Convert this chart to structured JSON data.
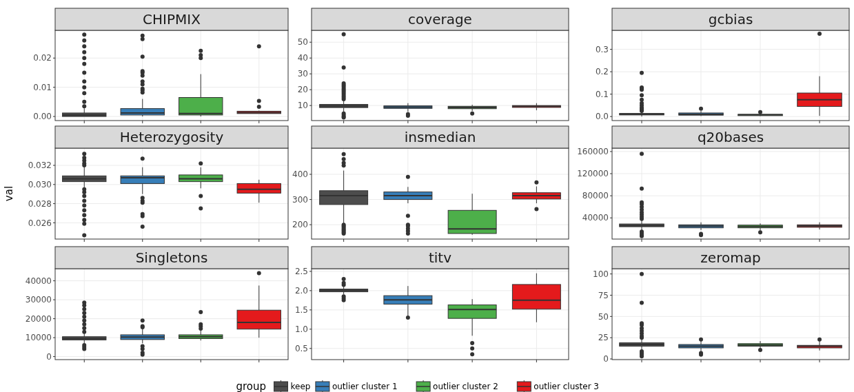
{
  "chart_data": [
    {
      "type": "box",
      "title": "CHIPMIX",
      "categories": [
        null,
        null,
        null,
        null
      ],
      "ylim": [
        -0.0014,
        0.0295
      ],
      "yticks": [
        {
          "value": 0,
          "label": "0.00"
        },
        0.01,
        0.02
      ],
      "grid": true,
      "series": [
        {
          "color": "#4d4d4d",
          "boxes": [
            {
              "low": 0,
              "q1": 0,
              "median": 0.0005,
              "q3": 0.0012,
              "high": 0.0028,
              "outliers": [
                0.0035,
                0.005,
                0.008,
                0.01,
                0.012,
                0.015,
                0.018,
                0.02,
                0.022,
                0.024,
                0.026,
                0.028
              ]
            },
            null,
            null,
            null
          ]
        },
        {
          "color": "#377eb8",
          "boxes": [
            null,
            {
              "low": 0,
              "q1": 0.0005,
              "median": 0.0012,
              "q3": 0.0027,
              "high": 0.006,
              "outliers": [
                0.0082,
                0.009,
                0.0095,
                0.011,
                0.012,
                0.014,
                0.015,
                0.0155,
                0.0205,
                0.0265,
                0.0277
              ]
            },
            null,
            null
          ]
        },
        {
          "color": "#4daf4a",
          "boxes": [
            null,
            null,
            {
              "low": 0,
              "q1": 0.0005,
              "median": 0.001,
              "q3": 0.0065,
              "high": 0.0145,
              "outliers": [
                0.02,
                0.021,
                0.0225
              ]
            },
            null
          ]
        },
        {
          "color": "#e41a1c",
          "boxes": [
            null,
            null,
            null,
            {
              "low": 0.001,
              "q1": 0.001,
              "median": 0.0013,
              "q3": 0.0018,
              "high": 0.002,
              "outliers": [
                0.0033,
                0.0053,
                0.024
              ]
            }
          ]
        }
      ]
    },
    {
      "type": "box",
      "title": "coverage",
      "categories": [
        null,
        null,
        null,
        null
      ],
      "ylim": [
        0.5,
        57.5
      ],
      "yticks": [
        10,
        20,
        30,
        40,
        50
      ],
      "grid": true,
      "series": [
        {
          "color": "#4d4d4d",
          "boxes": [
            {
              "low": 5.5,
              "q1": 8.7,
              "median": 9.7,
              "q3": 10.7,
              "high": 13,
              "outliers": [
                2.5,
                3,
                4,
                5,
                14,
                15,
                16,
                17,
                18,
                19,
                20,
                21,
                22,
                23,
                24,
                34,
                55
              ]
            },
            null,
            null,
            null
          ]
        },
        {
          "color": "#377eb8",
          "boxes": [
            null,
            {
              "low": 6,
              "q1": 8.2,
              "median": 9,
              "q3": 9.8,
              "high": 11.5,
              "outliers": [
                3.5,
                4.5
              ]
            },
            null,
            null
          ]
        },
        {
          "color": "#4daf4a",
          "boxes": [
            null,
            null,
            {
              "low": 6.5,
              "q1": 8,
              "median": 8.8,
              "q3": 9.5,
              "high": 10.5,
              "outliers": [
                5
              ]
            },
            null
          ]
        },
        {
          "color": "#e41a1c",
          "boxes": [
            null,
            null,
            null,
            {
              "low": 7,
              "q1": 8.8,
              "median": 9.5,
              "q3": 10,
              "high": 11.5
            }
          ]
        }
      ]
    },
    {
      "type": "box",
      "title": "gcbias",
      "categories": [
        null,
        null,
        null,
        null
      ],
      "ylim": [
        -0.018,
        0.385
      ],
      "yticks": [
        {
          "value": 0,
          "label": "0.0"
        },
        0.1,
        0.2,
        0.3
      ],
      "grid": true,
      "series": [
        {
          "color": "#4d4d4d",
          "boxes": [
            {
              "low": 0,
              "q1": 0.007,
              "median": 0.01,
              "q3": 0.014,
              "high": 0.02,
              "outliers": [
                0.025,
                0.03,
                0.035,
                0.04,
                0.05,
                0.06,
                0.075,
                0.095,
                0.12,
                0.125,
                0.13,
                0.195
              ]
            },
            null,
            null,
            null
          ]
        },
        {
          "color": "#377eb8",
          "boxes": [
            null,
            {
              "low": 0.002,
              "q1": 0.006,
              "median": 0.01,
              "q3": 0.016,
              "high": 0.025,
              "outliers": [
                0.035
              ]
            },
            null,
            null
          ]
        },
        {
          "color": "#4daf4a",
          "boxes": [
            null,
            null,
            {
              "low": 0.002,
              "q1": 0.004,
              "median": 0.007,
              "q3": 0.01,
              "high": 0.015,
              "outliers": [
                0.02
              ]
            },
            null
          ]
        },
        {
          "color": "#e41a1c",
          "boxes": [
            null,
            null,
            null,
            {
              "low": 0.003,
              "q1": 0.045,
              "median": 0.075,
              "q3": 0.105,
              "high": 0.18,
              "outliers": [
                0.37
              ]
            }
          ]
        }
      ]
    },
    {
      "type": "box",
      "title": "Heterozygosity",
      "ylabel": "val",
      "categories": [
        null,
        null,
        null,
        null
      ],
      "ylim": [
        0.0243,
        0.0338
      ],
      "yticks": [
        0.026,
        0.028,
        {
          "value": 0.03,
          "label": "0.030"
        },
        0.032
      ],
      "grid": true,
      "series": [
        {
          "color": "#4d4d4d",
          "boxes": [
            {
              "low": 0.0297,
              "q1": 0.0303,
              "median": 0.0306,
              "q3": 0.0309,
              "high": 0.0318,
              "outliers": [
                0.0247,
                0.0259,
                0.0263,
                0.0268,
                0.0273,
                0.0278,
                0.0283,
                0.0288,
                0.0292,
                0.0295,
                0.032,
                0.0322,
                0.0325,
                0.0328,
                0.0332
              ]
            },
            null,
            null,
            null
          ]
        },
        {
          "color": "#377eb8",
          "boxes": [
            null,
            {
              "low": 0.029,
              "q1": 0.0301,
              "median": 0.0307,
              "q3": 0.0309,
              "high": 0.0318,
              "outliers": [
                0.0256,
                0.0267,
                0.0269,
                0.0281,
                0.0283,
                0.0286,
                0.0327
              ]
            },
            null,
            null
          ]
        },
        {
          "color": "#4daf4a",
          "boxes": [
            null,
            null,
            {
              "low": 0.0296,
              "q1": 0.0303,
              "median": 0.0306,
              "q3": 0.031,
              "high": 0.0318,
              "outliers": [
                0.0275,
                0.0288,
                0.0322
              ]
            },
            null
          ]
        },
        {
          "color": "#e41a1c",
          "boxes": [
            null,
            null,
            null,
            {
              "low": 0.0281,
              "q1": 0.0291,
              "median": 0.0295,
              "q3": 0.0301,
              "high": 0.0305
            }
          ]
        }
      ]
    },
    {
      "type": "box",
      "title": "insmedian",
      "categories": [
        null,
        null,
        null,
        null
      ],
      "ylim": [
        143,
        504
      ],
      "yticks": [
        200,
        300,
        400
      ],
      "grid": true,
      "series": [
        {
          "color": "#4d4d4d",
          "boxes": [
            {
              "low": 205,
              "q1": 280,
              "median": 315,
              "q3": 335,
              "high": 415,
              "outliers": [
                165,
                170,
                175,
                180,
                185,
                190,
                195,
                200,
                435,
                445,
                460,
                480
              ]
            },
            null,
            null,
            null
          ]
        },
        {
          "color": "#377eb8",
          "boxes": [
            null,
            {
              "low": 285,
              "q1": 300,
              "median": 315,
              "q3": 330,
              "high": 350,
              "outliers": [
                165,
                175,
                185,
                195,
                200,
                235,
                390
              ]
            },
            null,
            null
          ]
        },
        {
          "color": "#4daf4a",
          "boxes": [
            null,
            null,
            {
              "low": 160,
              "q1": 165,
              "median": 183,
              "q3": 257,
              "high": 323
            },
            null
          ]
        },
        {
          "color": "#e41a1c",
          "boxes": [
            null,
            null,
            null,
            {
              "low": 285,
              "q1": 302,
              "median": 315,
              "q3": 327,
              "high": 352,
              "outliers": [
                262,
                368
              ]
            }
          ]
        }
      ]
    },
    {
      "type": "box",
      "title": "q20bases",
      "categories": [
        null,
        null,
        null,
        null
      ],
      "ylim": [
        1700,
        166200
      ],
      "yticks": [
        40000,
        80000,
        120000,
        160000
      ],
      "grid": true,
      "series": [
        {
          "color": "#4d4d4d",
          "boxes": [
            {
              "low": 17000,
              "q1": 24000,
              "median": 26000,
              "q3": 29000,
              "high": 37000,
              "outliers": [
                7000,
                9000,
                12000,
                15000,
                38000,
                42000,
                46000,
                50000,
                55000,
                60000,
                65000,
                68000,
                93000,
                156000
              ]
            },
            null,
            null,
            null
          ]
        },
        {
          "color": "#377eb8",
          "boxes": [
            null,
            {
              "low": 18000,
              "q1": 22000,
              "median": 25000,
              "q3": 27500,
              "high": 32000,
              "outliers": [
                9000,
                11000
              ]
            },
            null,
            null
          ]
        },
        {
          "color": "#4daf4a",
          "boxes": [
            null,
            null,
            {
              "low": 17000,
              "q1": 22000,
              "median": 24500,
              "q3": 27000,
              "high": 30000,
              "outliers": [
                14000
              ]
            },
            null
          ]
        },
        {
          "color": "#e41a1c",
          "boxes": [
            null,
            null,
            null,
            {
              "low": 19000,
              "q1": 23000,
              "median": 25500,
              "q3": 27500,
              "high": 32000
            }
          ]
        }
      ]
    },
    {
      "type": "box",
      "title": "Singletons",
      "categories": [
        null,
        null,
        null,
        null
      ],
      "ylim": [
        -1600,
        46400
      ],
      "yticks": [
        0,
        10000,
        20000,
        30000,
        40000
      ],
      "grid": true,
      "series": [
        {
          "color": "#4d4d4d",
          "boxes": [
            {
              "low": 7000,
              "q1": 8800,
              "median": 9500,
              "q3": 10500,
              "high": 12500,
              "outliers": [
                4000,
                5000,
                6000,
                13000,
                15000,
                17000,
                19000,
                21000,
                23000,
                25000,
                27000,
                28500
              ]
            },
            null,
            null,
            null
          ]
        },
        {
          "color": "#377eb8",
          "boxes": [
            null,
            {
              "low": 7000,
              "q1": 9000,
              "median": 10300,
              "q3": 11500,
              "high": 15000,
              "outliers": [
                1000,
                2000,
                4000,
                5500,
                15500,
                16000,
                19000
              ]
            },
            null,
            null
          ]
        },
        {
          "color": "#4daf4a",
          "boxes": [
            null,
            null,
            {
              "low": 8500,
              "q1": 9500,
              "median": 10500,
              "q3": 11500,
              "high": 14000,
              "outliers": [
                14800,
                16000,
                17000,
                23500
              ]
            },
            null
          ]
        },
        {
          "color": "#e41a1c",
          "boxes": [
            null,
            null,
            null,
            {
              "low": 10000,
              "q1": 14500,
              "median": 18000,
              "q3": 24500,
              "high": 37500,
              "outliers": [
                44000
              ]
            }
          ]
        }
      ]
    },
    {
      "type": "box",
      "title": "titv",
      "categories": [
        null,
        null,
        null,
        null
      ],
      "ylim": [
        0.21,
        2.57
      ],
      "yticks": [
        0.5,
        {
          "value": 1,
          "label": "1.0"
        },
        1.5,
        {
          "value": 2,
          "label": "2.0"
        },
        2.5
      ],
      "grid": true,
      "legend": "bottom",
      "legend_title": "group",
      "series": [
        {
          "name": "keep",
          "color": "#4d4d4d",
          "boxes": [
            {
              "low": 1.9,
              "q1": 1.97,
              "median": 2.01,
              "q3": 2.04,
              "high": 2.12,
              "outliers": [
                1.75,
                1.8,
                1.85,
                2.15,
                2.2,
                2.3
              ]
            },
            null,
            null,
            null
          ]
        },
        {
          "name": "outlier cluster 1",
          "color": "#377eb8",
          "boxes": [
            null,
            {
              "low": 1.35,
              "q1": 1.65,
              "median": 1.76,
              "q3": 1.87,
              "high": 2.12,
              "outliers": [
                1.3
              ]
            },
            null,
            null
          ]
        },
        {
          "name": "outlier cluster 2",
          "color": "#4daf4a",
          "boxes": [
            null,
            null,
            {
              "low": 0.83,
              "q1": 1.28,
              "median": 1.51,
              "q3": 1.63,
              "high": 1.78,
              "outliers": [
                0.35,
                0.5,
                0.64
              ]
            },
            null
          ]
        },
        {
          "name": "outlier cluster 3",
          "color": "#e41a1c",
          "boxes": [
            null,
            null,
            null,
            {
              "low": 1.18,
              "q1": 1.52,
              "median": 1.75,
              "q3": 2.16,
              "high": 2.45
            }
          ]
        }
      ]
    },
    {
      "type": "box",
      "title": "zeromap",
      "categories": [
        null,
        null,
        null,
        null
      ],
      "ylim": [
        -0.8,
        106.2
      ],
      "yticks": [
        0,
        25,
        50,
        75,
        100
      ],
      "grid": true,
      "series": [
        {
          "color": "#4d4d4d",
          "boxes": [
            {
              "low": 10,
              "q1": 15,
              "median": 17,
              "q3": 19,
              "high": 24,
              "outliers": [
                3,
                5,
                7,
                9,
                25,
                27,
                30,
                33,
                36,
                40,
                42,
                66,
                100
              ]
            },
            null,
            null,
            null
          ]
        },
        {
          "color": "#377eb8",
          "boxes": [
            null,
            {
              "low": 9,
              "q1": 13,
              "median": 15,
              "q3": 17,
              "high": 22,
              "outliers": [
                5,
                7,
                23
              ]
            },
            null,
            null
          ]
        },
        {
          "color": "#4daf4a",
          "boxes": [
            null,
            null,
            {
              "low": 12,
              "q1": 15,
              "median": 16.5,
              "q3": 18,
              "high": 21,
              "outliers": [
                10.5
              ]
            },
            null
          ]
        },
        {
          "color": "#e41a1c",
          "boxes": [
            null,
            null,
            null,
            {
              "low": 10,
              "q1": 13,
              "median": 15,
              "q3": 16,
              "high": 21,
              "outliers": [
                23
              ]
            }
          ]
        }
      ]
    }
  ]
}
